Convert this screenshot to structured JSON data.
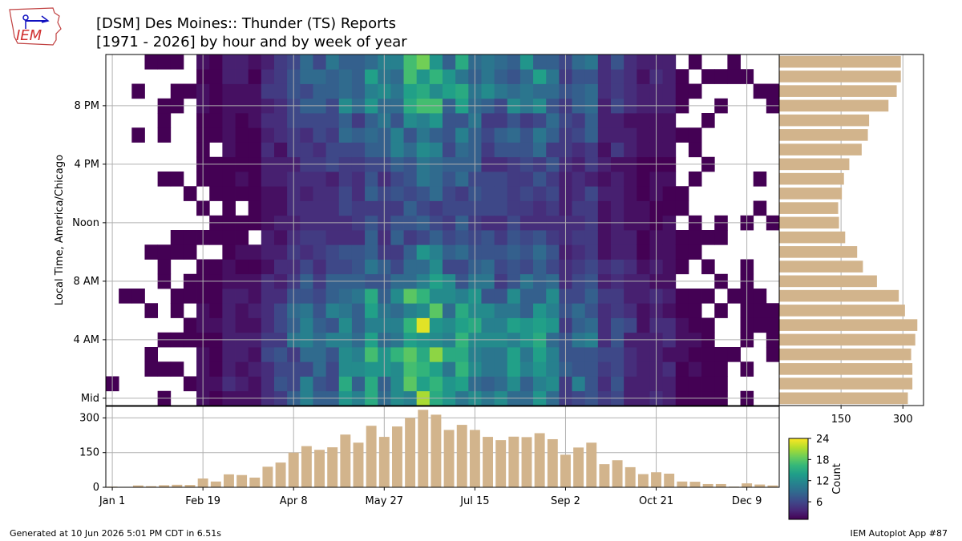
{
  "header": {
    "title_line1": "[DSM] Des Moines:: Thunder (TS) Reports",
    "title_line2": "[1971 - 2026] by hour and by week of year"
  },
  "logo": {
    "text": "IEM"
  },
  "footer": {
    "generated": "Generated at 10 Jun 2026 5:01 PM CDT in 6.51s",
    "app": "IEM Autoplot App #87"
  },
  "colors": {
    "bar": "#d2b48c",
    "grid": "#b0b0b0",
    "viridis": [
      "#440154",
      "#482878",
      "#3e4989",
      "#31688e",
      "#26828e",
      "#1f9e89",
      "#35b779",
      "#6ece58",
      "#b5de2b",
      "#fde725"
    ]
  },
  "chart_data": {
    "type": "heatmap",
    "ylabel": "Local Time, America/Chicago",
    "colorbar": {
      "label": "Count",
      "min": 1,
      "max": 24,
      "ticks": [
        6,
        12,
        18,
        24
      ]
    },
    "heatmap": {
      "x_ticks": [
        {
          "week": 0,
          "label": "Jan 1"
        },
        {
          "week": 7,
          "label": "Feb 19"
        },
        {
          "week": 14,
          "label": "Apr 8"
        },
        {
          "week": 21,
          "label": "May 27"
        },
        {
          "week": 28,
          "label": "Jul 15"
        },
        {
          "week": 35,
          "label": "Sep 2"
        },
        {
          "week": 42,
          "label": "Oct 21"
        },
        {
          "week": 49,
          "label": "Dec 9"
        }
      ],
      "y_ticks": [
        {
          "hour": 0,
          "label": "Mid"
        },
        {
          "hour": 4,
          "label": "4 AM"
        },
        {
          "hour": 8,
          "label": "8 AM"
        },
        {
          "hour": 12,
          "label": "Noon"
        },
        {
          "hour": 16,
          "label": "4 PM"
        },
        {
          "hour": 20,
          "label": "8 PM"
        }
      ],
      "weeks": 52,
      "hours": 24
    },
    "hourly_totals": {
      "hours": [
        0,
        1,
        2,
        3,
        4,
        5,
        6,
        7,
        8,
        9,
        10,
        11,
        12,
        13,
        14,
        15,
        16,
        17,
        18,
        19,
        20,
        21,
        22,
        23
      ],
      "values": [
        312,
        323,
        323,
        320,
        330,
        335,
        305,
        290,
        237,
        203,
        189,
        160,
        145,
        143,
        152,
        157,
        170,
        200,
        215,
        218,
        265,
        285,
        295,
        295
      ],
      "x_ticks": [
        150,
        300
      ]
    },
    "weekly_totals": {
      "weeks": [
        0,
        1,
        2,
        3,
        4,
        5,
        6,
        7,
        8,
        9,
        10,
        11,
        12,
        13,
        14,
        15,
        16,
        17,
        18,
        19,
        20,
        21,
        22,
        23,
        24,
        25,
        26,
        27,
        28,
        29,
        30,
        31,
        32,
        33,
        34,
        35,
        36,
        37,
        38,
        39,
        40,
        41,
        42,
        43,
        44,
        45,
        46,
        47,
        48,
        49,
        50,
        51
      ],
      "values": [
        3,
        2,
        8,
        5,
        9,
        11,
        10,
        38,
        25,
        56,
        53,
        42,
        89,
        107,
        150,
        178,
        162,
        173,
        228,
        193,
        266,
        218,
        263,
        300,
        335,
        314,
        248,
        270,
        248,
        218,
        204,
        219,
        217,
        234,
        208,
        141,
        172,
        193,
        100,
        117,
        87,
        57,
        65,
        59,
        25,
        24,
        14,
        14,
        3,
        17,
        12,
        8
      ],
      "y_ticks": [
        0,
        150,
        300
      ]
    }
  }
}
